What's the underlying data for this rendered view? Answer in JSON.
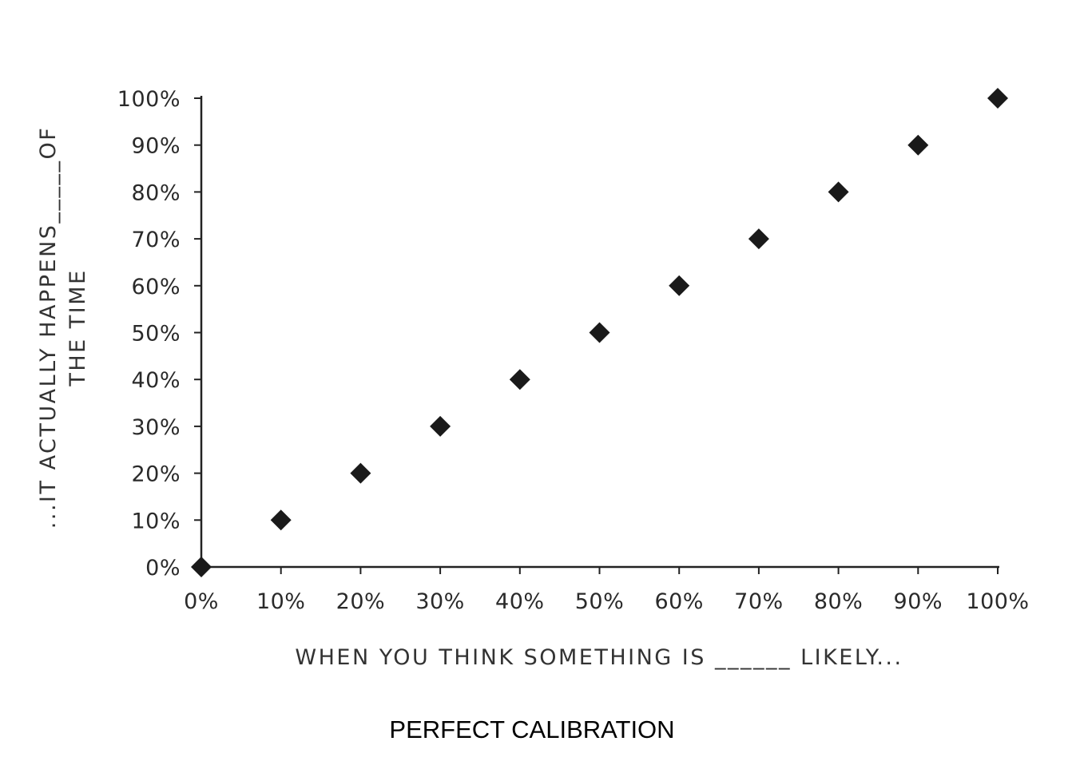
{
  "chart_data": {
    "type": "scatter",
    "title": "",
    "xlabel": "WHEN YOU THINK SOMETHING IS ______ LIKELY...",
    "ylabel_lines": [
      "...IT ACTUALLY HAPPENS_____OF",
      "THE TIME"
    ],
    "x": [
      0,
      10,
      20,
      30,
      40,
      50,
      60,
      70,
      80,
      90,
      100
    ],
    "y": [
      0,
      10,
      20,
      30,
      40,
      50,
      60,
      70,
      80,
      90,
      100
    ],
    "xlim": [
      0,
      100
    ],
    "ylim": [
      0,
      100
    ],
    "x_ticks": [
      "0%",
      "10%",
      "20%",
      "30%",
      "40%",
      "50%",
      "60%",
      "70%",
      "80%",
      "90%",
      "100%"
    ],
    "y_ticks": [
      "0%",
      "10%",
      "20%",
      "30%",
      "40%",
      "50%",
      "60%",
      "70%",
      "80%",
      "90%",
      "100%"
    ],
    "marker": "diamond",
    "marker_color": "#1a1a1a",
    "axis_color": "#222222",
    "grid": false,
    "legend": false
  },
  "caption": "PERFECT CALIBRATION"
}
